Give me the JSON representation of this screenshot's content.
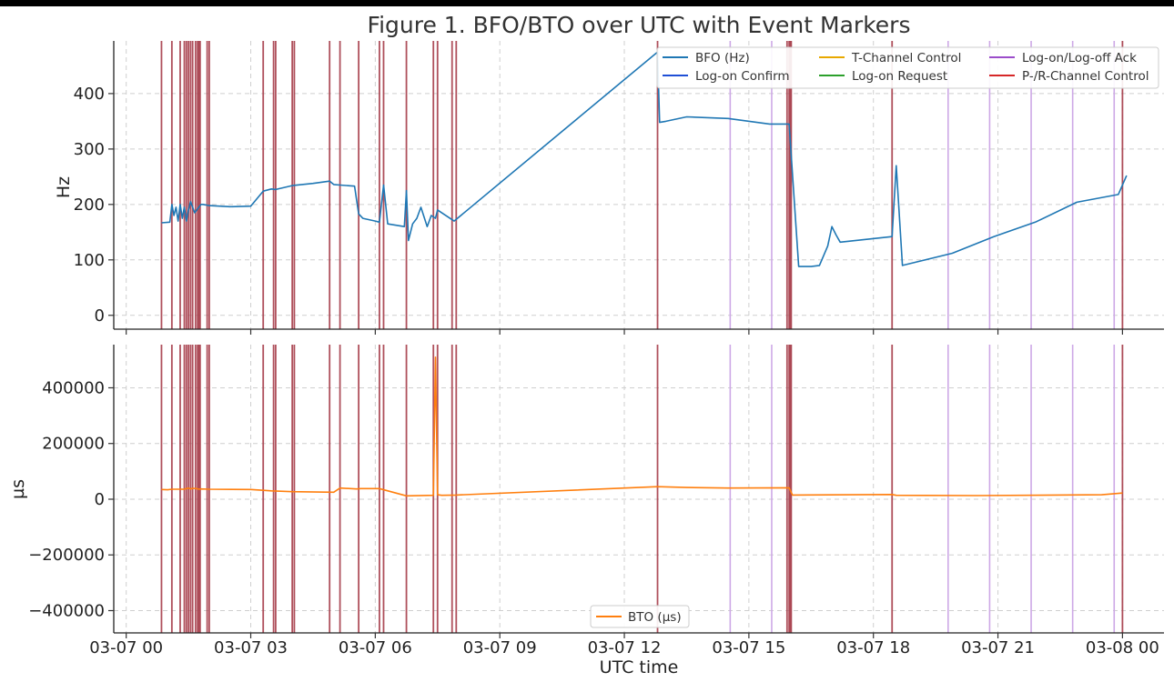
{
  "chart_data": {
    "type": "line",
    "title": "Figure 1. BFO/BTO over UTC with Event Markers",
    "xlabel": "UTC time",
    "x_ticks": [
      "03-07 00",
      "03-07 03",
      "03-07 06",
      "03-07 09",
      "03-07 12",
      "03-07 15",
      "03-07 18",
      "03-07 21",
      "03-08 00"
    ],
    "x_range_hours": [
      -0.3,
      25.0
    ],
    "grid": true,
    "legend_placement_top": "top-right",
    "legend_placement_bottom": "bottom-center",
    "event_markers": {
      "p_r_channel_control": [
        0.85,
        1.1,
        1.3,
        1.4,
        1.45,
        1.5,
        1.55,
        1.6,
        1.67,
        1.72,
        1.75,
        1.78,
        1.95,
        2.0,
        3.3,
        3.55,
        3.6,
        4.0,
        4.05,
        4.9,
        5.15,
        5.6,
        6.1,
        6.2,
        6.75,
        7.4,
        7.5,
        7.85,
        7.95,
        12.8,
        15.92,
        15.97,
        16.0,
        16.02,
        18.45,
        24.0
      ],
      "log_on_off_ack": [
        14.55,
        15.55,
        19.8,
        20.8,
        21.8,
        22.8,
        23.8
      ]
    },
    "panels": [
      {
        "ylabel": "Hz",
        "ylim": [
          -25,
          495
        ],
        "y_ticks": [
          0,
          100,
          200,
          300,
          400
        ],
        "series": [
          {
            "name": "BFO (Hz)",
            "color": "#1f77b4",
            "x": [
              0.85,
              1.05,
              1.1,
              1.15,
              1.2,
              1.25,
              1.3,
              1.35,
              1.4,
              1.45,
              1.5,
              1.55,
              1.6,
              1.65,
              1.7,
              1.75,
              1.8,
              1.85,
              2.0,
              2.5,
              3.0,
              3.3,
              3.5,
              3.6,
              4.0,
              4.5,
              4.9,
              5.0,
              5.15,
              5.5,
              5.6,
              5.7,
              6.0,
              6.1,
              6.2,
              6.3,
              6.7,
              6.75,
              6.8,
              6.9,
              7.0,
              7.1,
              7.25,
              7.35,
              7.45,
              7.5,
              7.9,
              12.8,
              12.85,
              13.0,
              13.5,
              14.5,
              15.5,
              15.97,
              16.2,
              16.5,
              16.7,
              16.9,
              17.0,
              17.1,
              17.2,
              18.45,
              18.55,
              18.7,
              19.9,
              20.9,
              21.9,
              22.9,
              23.9,
              24.1
            ],
            "values": [
              167,
              168,
              200,
              180,
              195,
              170,
              200,
              175,
              195,
              170,
              190,
              205,
              195,
              185,
              190,
              195,
              200,
              200,
              198,
              196,
              197,
              224,
              228,
              227,
              234,
              238,
              242,
              236,
              235,
              233,
              183,
              175,
              170,
              168,
              235,
              165,
              160,
              225,
              135,
              165,
              175,
              195,
              160,
              180,
              175,
              190,
              170,
              475,
              348,
              350,
              358,
              355,
              345,
              345,
              88,
              88,
              90,
              125,
              160,
              145,
              132,
              142,
              270,
              90,
              112,
              142,
              168,
              204,
              218,
              252
            ]
          }
        ]
      },
      {
        "ylabel": "µs",
        "ylim": [
          -480000,
          555000
        ],
        "y_ticks": [
          -400000,
          -200000,
          0,
          200000,
          400000
        ],
        "series": [
          {
            "name": "BTO (µs)",
            "color": "#ff7f0e",
            "x": [
              0.85,
              1.0,
              1.1,
              1.4,
              1.45,
              1.5,
              1.55,
              1.6,
              1.7,
              1.75,
              1.8,
              2.0,
              3.0,
              3.3,
              3.5,
              4.0,
              5.0,
              5.15,
              5.55,
              5.65,
              6.1,
              6.75,
              7.4,
              7.45,
              7.5,
              7.6,
              7.95,
              12.8,
              13.5,
              14.5,
              15.97,
              16.05,
              18.45,
              18.55,
              20.5,
              23.5,
              24.0
            ],
            "values": [
              35000,
              34000,
              36000,
              36000,
              38000,
              40000,
              37000,
              39000,
              38000,
              36000,
              37000,
              36000,
              35000,
              32000,
              30000,
              27000,
              25000,
              40000,
              37000,
              38000,
              38000,
              12000,
              14000,
              510000,
              16000,
              14000,
              15000,
              45000,
              42000,
              40000,
              41000,
              15000,
              17000,
              14000,
              13000,
              16000,
              22000
            ]
          }
        ]
      }
    ],
    "legend_entries": [
      {
        "name": "BFO (Hz)",
        "color": "#1f77b4"
      },
      {
        "name": "Log-on Confirm",
        "color": "#1f4fd6"
      },
      {
        "name": "T-Channel Control",
        "color": "#e8a800"
      },
      {
        "name": "Log-on Request",
        "color": "#2ca02c"
      },
      {
        "name": "Log-on/Log-off Ack",
        "color": "#9b4dca"
      },
      {
        "name": "P-/R-Channel Control",
        "color": "#d62728"
      }
    ],
    "marker_colors": {
      "p_r_channel_control": "#a63d4a",
      "log_on_off_ack": "#cda8e6"
    }
  }
}
